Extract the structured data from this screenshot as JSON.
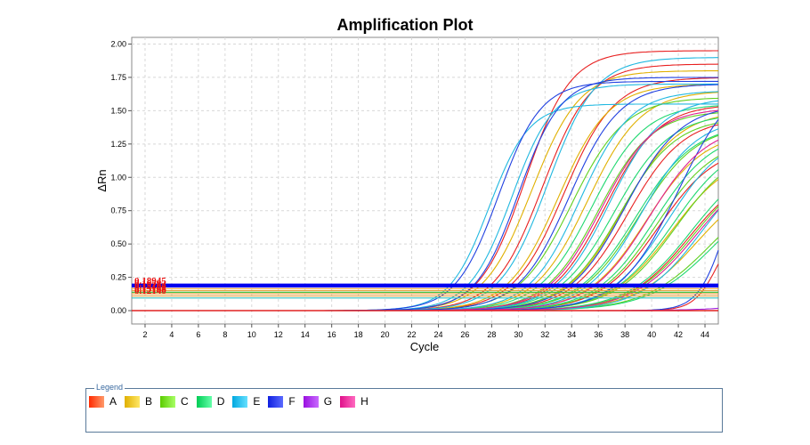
{
  "chart_data": {
    "type": "line",
    "title": "Amplification Plot",
    "xlabel": "Cycle",
    "ylabel": "ΔRn",
    "xlim": [
      1,
      45
    ],
    "ylim": [
      -0.1,
      2.05
    ],
    "xticks": [
      2,
      4,
      6,
      8,
      10,
      12,
      14,
      16,
      18,
      20,
      22,
      24,
      26,
      28,
      30,
      32,
      34,
      36,
      38,
      40,
      42,
      44
    ],
    "yticks": [
      0.0,
      0.25,
      0.5,
      0.75,
      1.0,
      1.25,
      1.5,
      1.75,
      2.0
    ],
    "ytick_labels": [
      "0.00",
      "0.25",
      "0.50",
      "0.75",
      "1.00",
      "1.25",
      "1.50",
      "1.75",
      "2.00"
    ],
    "grid": true,
    "threshold_labels": [
      "0.18945",
      "0.16782",
      "0.15234",
      "0.14102",
      "0.13168",
      "0.12140"
    ],
    "thresholds": [
      {
        "value": 0.195,
        "color": "#0000ee"
      },
      {
        "value": 0.182,
        "color": "#0000ee"
      },
      {
        "value": 0.165,
        "color": "#e8a040"
      },
      {
        "value": 0.15,
        "color": "#e8a040"
      },
      {
        "value": 0.138,
        "color": "#40c040"
      },
      {
        "value": 0.126,
        "color": "#e8a040"
      },
      {
        "value": 0.11,
        "color": "#e8a040"
      },
      {
        "value": 0.095,
        "color": "#30c0c0"
      }
    ],
    "series_model": "sigmoid: baseline + plateau / (1 + exp(-(cycle - midpoint) / slope))",
    "series": [
      {
        "group": "A",
        "color": "#e82020",
        "curves": [
          {
            "mid": 30.5,
            "plateau": 1.95,
            "slope": 1.7
          },
          {
            "mid": 31.8,
            "plateau": 1.85,
            "slope": 1.8
          },
          {
            "mid": 33.4,
            "plateau": 1.75,
            "slope": 1.9
          },
          {
            "mid": 36.5,
            "plateau": 1.55,
            "slope": 2.0
          },
          {
            "mid": 38.2,
            "plateau": 1.45,
            "slope": 2.1
          },
          {
            "mid": 40.5,
            "plateau": 1.25,
            "slope": 2.2
          },
          {
            "mid": 42.8,
            "plateau": 1.1,
            "slope": 2.3
          },
          {
            "mid": 45.0,
            "plateau": 0.7,
            "slope": 0.9
          }
        ]
      },
      {
        "group": "B",
        "color": "#e0b000",
        "curves": [
          {
            "mid": 31.0,
            "plateau": 1.8,
            "slope": 1.8
          },
          {
            "mid": 33.0,
            "plateau": 1.7,
            "slope": 1.9
          },
          {
            "mid": 35.2,
            "plateau": 1.65,
            "slope": 2.0
          },
          {
            "mid": 37.8,
            "plateau": 1.5,
            "slope": 2.1
          },
          {
            "mid": 39.6,
            "plateau": 1.35,
            "slope": 2.2
          },
          {
            "mid": 41.5,
            "plateau": 1.2,
            "slope": 2.3
          },
          {
            "mid": 43.5,
            "plateau": 1.05,
            "slope": 2.4
          }
        ]
      },
      {
        "group": "C",
        "color": "#60d020",
        "curves": [
          {
            "mid": 34.0,
            "plateau": 1.6,
            "slope": 2.0
          },
          {
            "mid": 36.0,
            "plateau": 1.5,
            "slope": 2.0
          },
          {
            "mid": 37.6,
            "plateau": 1.45,
            "slope": 2.1
          },
          {
            "mid": 39.0,
            "plateau": 1.4,
            "slope": 2.2
          },
          {
            "mid": 40.4,
            "plateau": 1.3,
            "slope": 2.2
          },
          {
            "mid": 41.8,
            "plateau": 1.25,
            "slope": 2.3
          },
          {
            "mid": 43.2,
            "plateau": 1.15,
            "slope": 2.4
          },
          {
            "mid": 44.5,
            "plateau": 1.0,
            "slope": 2.5
          }
        ]
      },
      {
        "group": "D",
        "color": "#20d870",
        "curves": [
          {
            "mid": 35.5,
            "plateau": 1.55,
            "slope": 2.0
          },
          {
            "mid": 37.2,
            "plateau": 1.48,
            "slope": 2.1
          },
          {
            "mid": 38.8,
            "plateau": 1.4,
            "slope": 2.2
          },
          {
            "mid": 40.2,
            "plateau": 1.35,
            "slope": 2.2
          },
          {
            "mid": 41.6,
            "plateau": 1.3,
            "slope": 2.3
          },
          {
            "mid": 43.0,
            "plateau": 1.2,
            "slope": 2.4
          },
          {
            "mid": 44.8,
            "plateau": 1.0,
            "slope": 2.5
          }
        ]
      },
      {
        "group": "E",
        "color": "#20b8e0",
        "curves": [
          {
            "mid": 27.8,
            "plateau": 1.55,
            "slope": 1.5
          },
          {
            "mid": 29.5,
            "plateau": 1.7,
            "slope": 1.6
          },
          {
            "mid": 32.2,
            "plateau": 1.9,
            "slope": 1.8
          },
          {
            "mid": 34.6,
            "plateau": 1.65,
            "slope": 1.9
          },
          {
            "mid": 36.8,
            "plateau": 1.6,
            "slope": 2.0
          },
          {
            "mid": 39.2,
            "plateau": 1.45,
            "slope": 2.1
          },
          {
            "mid": 41.2,
            "plateau": 1.35,
            "slope": 2.2
          },
          {
            "mid": 43.8,
            "plateau": 1.2,
            "slope": 2.3
          }
        ]
      },
      {
        "group": "F",
        "color": "#2040e0",
        "curves": [
          {
            "mid": 28.5,
            "plateau": 1.72,
            "slope": 1.6
          },
          {
            "mid": 30.0,
            "plateau": 1.75,
            "slope": 1.6
          },
          {
            "mid": 33.8,
            "plateau": 1.7,
            "slope": 1.9
          },
          {
            "mid": 38.0,
            "plateau": 1.55,
            "slope": 2.1
          },
          {
            "mid": 42.0,
            "plateau": 1.8,
            "slope": 2.2
          },
          {
            "mid": 45.5,
            "plateau": 1.2,
            "slope": 1.0
          }
        ]
      },
      {
        "group": "G",
        "color": "#a020e0",
        "curves": [
          {
            "mid": 52.0,
            "plateau": 0.3,
            "slope": 2.5
          }
        ]
      },
      {
        "group": "H",
        "color": "#e02090",
        "curves": [
          {
            "mid": 36.2,
            "plateau": 1.52,
            "slope": 2.0
          },
          {
            "mid": 39.8,
            "plateau": 1.4,
            "slope": 2.2
          },
          {
            "mid": 43.4,
            "plateau": 1.15,
            "slope": 2.4
          }
        ]
      }
    ]
  },
  "legend": {
    "title": "Legend",
    "items": [
      {
        "label": "A",
        "color_from": "#ff2a00",
        "color_to": "#ff9a6a"
      },
      {
        "label": "B",
        "color_from": "#e0b000",
        "color_to": "#ffe766"
      },
      {
        "label": "C",
        "color_from": "#5acc00",
        "color_to": "#a8ff66"
      },
      {
        "label": "D",
        "color_from": "#00cc55",
        "color_to": "#66ffaa"
      },
      {
        "label": "E",
        "color_from": "#00a8e0",
        "color_to": "#66e0ff"
      },
      {
        "label": "F",
        "color_from": "#1020e0",
        "color_to": "#5a6aff"
      },
      {
        "label": "G",
        "color_from": "#9a10e0",
        "color_to": "#c86aff"
      },
      {
        "label": "H",
        "color_from": "#e0108a",
        "color_to": "#ff6ac0"
      }
    ]
  }
}
